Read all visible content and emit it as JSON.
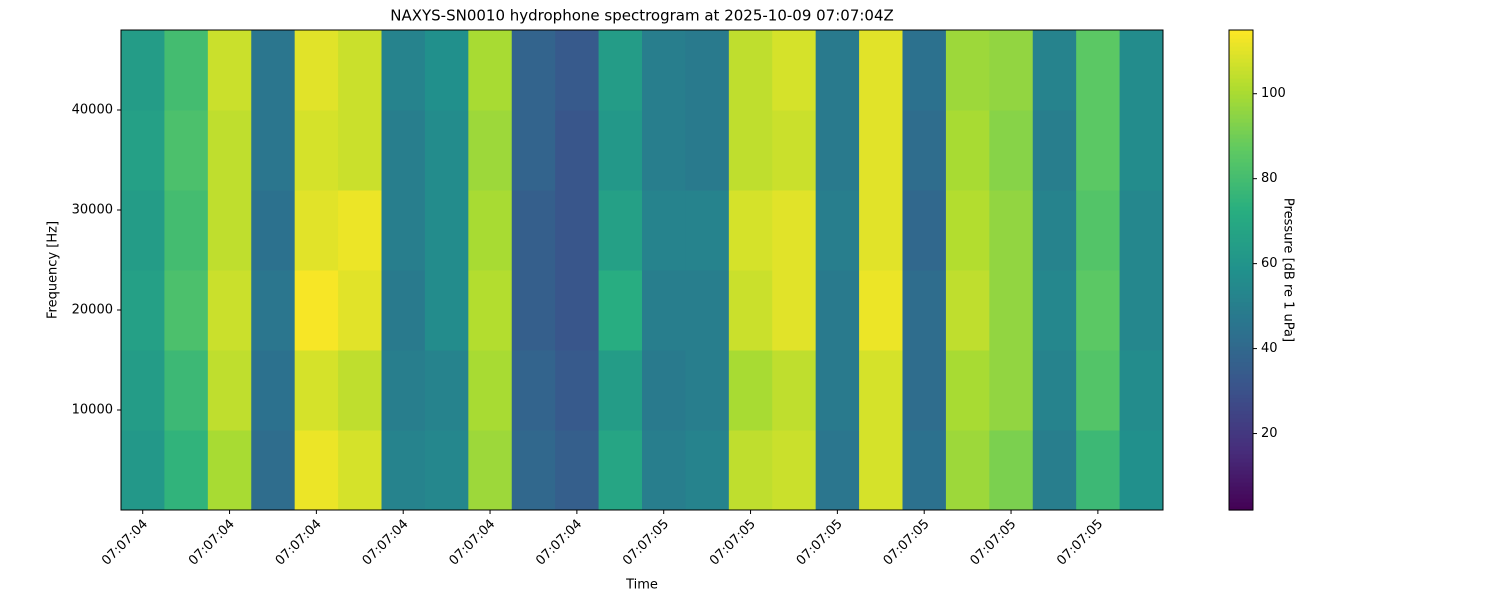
{
  "chart_data": {
    "type": "heatmap",
    "title": "NAXYS-SN0010 hydrophone spectrogram at 2025-10-09 07:07:04Z",
    "x_label": "Time",
    "y_label": "Frequency [Hz]",
    "xlim": [
      0,
      24
    ],
    "xticks": [
      {
        "value": 0.5,
        "label": "07:07:04"
      },
      {
        "value": 2.5,
        "label": "07:07:04"
      },
      {
        "value": 4.5,
        "label": "07:07:04"
      },
      {
        "value": 6.5,
        "label": "07:07:04"
      },
      {
        "value": 8.5,
        "label": "07:07:04"
      },
      {
        "value": 10.5,
        "label": "07:07:04"
      },
      {
        "value": 12.5,
        "label": "07:07:05"
      },
      {
        "value": 14.5,
        "label": "07:07:05"
      },
      {
        "value": 16.5,
        "label": "07:07:05"
      },
      {
        "value": 18.5,
        "label": "07:07:05"
      },
      {
        "value": 20.5,
        "label": "07:07:05"
      },
      {
        "value": 22.5,
        "label": "07:07:05"
      }
    ],
    "ylim": [
      0,
      48000
    ],
    "yticks": [
      10000,
      20000,
      30000,
      40000
    ],
    "ybins": [
      0,
      8000,
      16000,
      24000,
      32000,
      40000,
      48000
    ],
    "z": [
      [
        62,
        75,
        100,
        42,
        112,
        108,
        52,
        54,
        98,
        40,
        36,
        68,
        50,
        52,
        104,
        106,
        46,
        108,
        44,
        98,
        92,
        50,
        78,
        58
      ],
      [
        64,
        78,
        104,
        44,
        108,
        104,
        50,
        52,
        100,
        38,
        34,
        64,
        48,
        50,
        100,
        104,
        48,
        108,
        42,
        100,
        96,
        52,
        84,
        56
      ],
      [
        66,
        82,
        106,
        46,
        114,
        110,
        48,
        56,
        102,
        36,
        32,
        72,
        50,
        50,
        106,
        110,
        48,
        112,
        42,
        104,
        96,
        54,
        86,
        54
      ],
      [
        64,
        80,
        104,
        44,
        110,
        112,
        50,
        56,
        100,
        36,
        32,
        66,
        52,
        52,
        108,
        110,
        50,
        110,
        40,
        102,
        96,
        52,
        84,
        54
      ],
      [
        66,
        82,
        104,
        46,
        108,
        106,
        50,
        56,
        98,
        38,
        32,
        62,
        50,
        48,
        104,
        106,
        48,
        110,
        42,
        100,
        94,
        50,
        86,
        56
      ],
      [
        64,
        80,
        106,
        46,
        110,
        106,
        52,
        58,
        100,
        38,
        34,
        64,
        50,
        48,
        104,
        108,
        48,
        110,
        44,
        98,
        96,
        52,
        86,
        56
      ]
    ],
    "colormap": "viridis",
    "colorbar": {
      "label": "Pressure [dB re 1 uPa]",
      "lim": [
        2,
        115
      ],
      "ticks": [
        20,
        40,
        60,
        80,
        100
      ]
    }
  }
}
